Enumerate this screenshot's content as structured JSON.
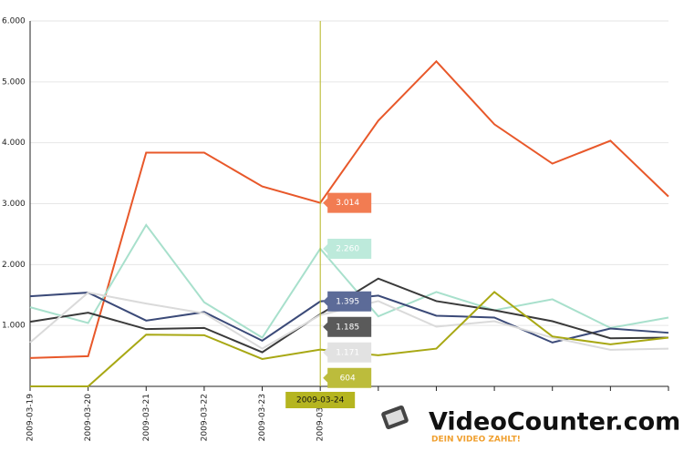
{
  "chart_data": {
    "type": "line",
    "categories": [
      "2009-03-19",
      "2009-03-20",
      "2009-03-21",
      "2009-03-22",
      "2009-03-23",
      "2009-03-24",
      null,
      null,
      null,
      null,
      null,
      null
    ],
    "ylim": [
      0,
      6000
    ],
    "yticks": [
      {
        "value": 1000,
        "label": "1.000"
      },
      {
        "value": 2000,
        "label": "2.000"
      },
      {
        "value": 3000,
        "label": "3.000"
      },
      {
        "value": 4000,
        "label": "4.000"
      },
      {
        "value": 5000,
        "label": "5.000"
      },
      {
        "value": 6000,
        "label": "6.000"
      }
    ],
    "grid": true,
    "crosshair_color": "#b5b520",
    "series": [
      {
        "color": "#e8582a",
        "label_color": "#f27c52",
        "values": [
          465,
          495,
          3838,
          3838,
          3283,
          3014,
          4363,
          5337,
          4303,
          3658,
          4033,
          3118
        ],
        "value_labels": [
          null,
          null,
          null,
          null,
          null,
          "3.014",
          null,
          null,
          null,
          null,
          null,
          null
        ]
      },
      {
        "color": "#a8e0cc",
        "label_color": "#bdeadb",
        "values": [
          1300,
          1040,
          2650,
          1380,
          800,
          2260,
          1150,
          1550,
          1250,
          1430,
          960,
          1130
        ],
        "value_labels": [
          null,
          null,
          null,
          null,
          null,
          "2.260",
          null,
          null,
          null,
          null,
          null,
          null
        ]
      },
      {
        "color": "#3b4a78",
        "label_color": "#5c6b98",
        "values": [
          1480,
          1540,
          1080,
          1220,
          750,
          1395,
          1490,
          1160,
          1130,
          720,
          950,
          880
        ],
        "value_labels": [
          null,
          null,
          null,
          null,
          null,
          "1.395",
          null,
          null,
          null,
          null,
          null,
          null
        ]
      },
      {
        "color": "#3a3a3a",
        "label_color": "#5a5a5a",
        "values": [
          1060,
          1210,
          940,
          960,
          560,
          1185,
          1770,
          1400,
          1250,
          1070,
          790,
          800
        ],
        "value_labels": [
          null,
          null,
          null,
          null,
          null,
          "1.185",
          null,
          null,
          null,
          null,
          null,
          null
        ]
      },
      {
        "color": "#dadada",
        "label_color": "#e2e2e2",
        "values": [
          720,
          1540,
          1360,
          1200,
          620,
          1171,
          1400,
          980,
          1070,
          800,
          600,
          620
        ],
        "value_labels": [
          null,
          null,
          null,
          null,
          null,
          "1.171",
          null,
          null,
          null,
          null,
          null,
          null
        ]
      },
      {
        "color": "#a8a814",
        "label_color": "#bcbc3c",
        "values": [
          0,
          0,
          850,
          840,
          450,
          604,
          510,
          620,
          1550,
          820,
          690,
          800
        ],
        "value_labels": [
          null,
          null,
          null,
          null,
          null,
          "604",
          null,
          null,
          null,
          null,
          null,
          null
        ]
      }
    ]
  },
  "logo": {
    "title": "VideoCounter.com",
    "tagline": "DEIN VIDEO ZAHLT!"
  }
}
